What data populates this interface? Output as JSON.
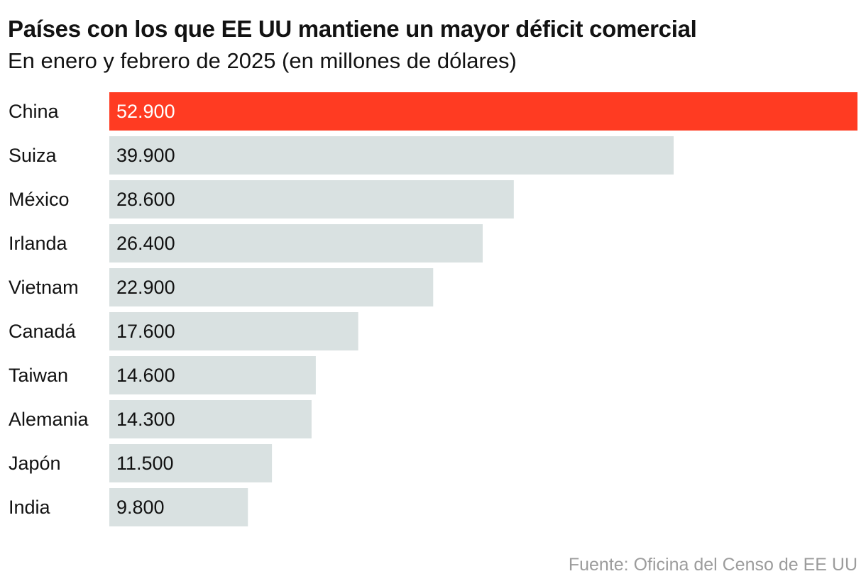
{
  "chart_data": {
    "type": "bar",
    "orientation": "horizontal",
    "title": "Países con los que EE UU mantiene un mayor déficit comercial",
    "subtitle": "En enero y febrero de 2025 (en millones de dólares)",
    "categories": [
      "China",
      "Suiza",
      "México",
      "Irlanda",
      "Vietnam",
      "Canadá",
      "Taiwan",
      "Alemania",
      "Japón",
      "India"
    ],
    "values": [
      52900,
      39900,
      28600,
      26400,
      22900,
      17600,
      14600,
      14300,
      11500,
      9800
    ],
    "value_labels": [
      "52.900",
      "39.900",
      "28.600",
      "26.400",
      "22.900",
      "17.600",
      "14.600",
      "14.300",
      "11.500",
      "9.800"
    ],
    "highlight_index": 0,
    "xlim": [
      0,
      52900
    ],
    "grid": false,
    "source": "Fuente: Oficina del Censo de EE UU",
    "colors": {
      "highlight": "#ff3b22",
      "bar": "#d9e1e1",
      "highlight_text": "#ffffff",
      "bar_text": "#121212",
      "source_text": "#9c9c9c"
    }
  }
}
